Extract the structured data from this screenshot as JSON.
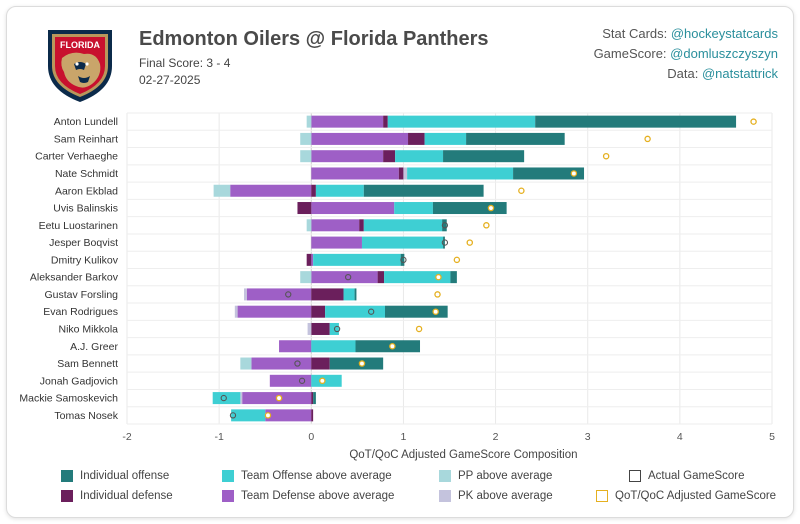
{
  "header": {
    "title": "Edmonton Oilers @ Florida Panthers",
    "final_score": "Final Score: 3 - 4",
    "date": "02-27-2025",
    "logo_text": "FLORIDA"
  },
  "credits": [
    {
      "label": "Stat Cards: ",
      "handle": "@hockeystatcards"
    },
    {
      "label": "GameScore: ",
      "handle": "@domluszczyszyn"
    },
    {
      "label": "Data: ",
      "handle": "@natstattrick"
    }
  ],
  "colors": {
    "ind_off": "#237b7b",
    "team_off": "#3ecfd3",
    "pp": "#a8d8dc",
    "ind_def": "#6b1f5c",
    "team_def": "#9e5fc6",
    "pk": "#c4c3dd",
    "qot_marker": "#e5b020"
  },
  "chart_data": {
    "type": "bar",
    "orientation": "horizontal-stacked",
    "xlabel": "QoT/QoC Adjusted GameScore Composition",
    "xlim": [
      -2,
      5
    ],
    "xticks": [
      -2,
      -1,
      0,
      1,
      2,
      3,
      4,
      5
    ],
    "players": [
      "Anton Lundell",
      "Sam Reinhart",
      "Carter Verhaeghe",
      "Nate Schmidt",
      "Aaron Ekblad",
      "Uvis Balinskis",
      "Eetu Luostarinen",
      "Jesper Boqvist",
      "Dmitry Kulikov",
      "Aleksander Barkov",
      "Gustav Forsling",
      "Evan Rodrigues",
      "Niko Mikkola",
      "A.J. Greer",
      "Sam Bennett",
      "Jonah Gadjovich",
      "Mackie Samoskevich",
      "Tomas Nosek"
    ],
    "series": [
      {
        "key": "team_def",
        "name": "Team Defense above average",
        "values": [
          0.78,
          1.05,
          0.78,
          0.95,
          -0.88,
          0.9,
          0.52,
          0.55,
          0.02,
          0.72,
          -0.7,
          -0.8,
          0.0,
          -0.35,
          -0.65,
          -0.45,
          -0.75,
          -0.5
        ]
      },
      {
        "key": "ind_def",
        "name": "Individual defense",
        "values": [
          0.05,
          0.18,
          0.13,
          0.05,
          0.05,
          -0.15,
          0.05,
          0.0,
          -0.05,
          0.07,
          0.35,
          0.15,
          0.2,
          0.0,
          0.2,
          0.0,
          0.02,
          0.02
        ]
      },
      {
        "key": "pk",
        "name": "PK above average",
        "values": [
          0.0,
          0.0,
          0.0,
          0.04,
          0.0,
          0.0,
          0.0,
          0.0,
          0.0,
          0.0,
          -0.03,
          -0.03,
          -0.04,
          0.0,
          0.0,
          0.0,
          -0.02,
          0.0
        ]
      },
      {
        "key": "pp",
        "name": "PP above average",
        "values": [
          -0.05,
          -0.12,
          -0.12,
          0.0,
          -0.18,
          0.0,
          -0.05,
          0.0,
          0.0,
          -0.12,
          0.0,
          0.0,
          0.0,
          0.0,
          -0.12,
          0.0,
          0.0,
          0.0
        ]
      },
      {
        "key": "team_off",
        "name": "Team Offense above average",
        "values": [
          1.6,
          0.45,
          0.52,
          1.15,
          0.52,
          0.42,
          0.85,
          0.88,
          0.95,
          0.72,
          0.12,
          0.65,
          0.1,
          0.48,
          0.0,
          0.33,
          -0.3,
          -0.37
        ]
      },
      {
        "key": "ind_off",
        "name": "Individual offense",
        "values": [
          2.18,
          1.07,
          0.88,
          0.77,
          1.3,
          0.8,
          0.05,
          0.02,
          0.04,
          0.07,
          0.02,
          0.68,
          0.0,
          0.7,
          0.58,
          0.0,
          0.03,
          0.0
        ]
      }
    ],
    "actual_gamescore": [
      null,
      null,
      null,
      null,
      null,
      null,
      1.45,
      1.45,
      1.0,
      0.4,
      -0.25,
      0.65,
      0.28,
      null,
      -0.15,
      -0.1,
      -0.95,
      -0.85
    ],
    "qot_adjusted_gamescore": [
      4.8,
      3.65,
      3.2,
      2.85,
      2.28,
      1.95,
      1.9,
      1.72,
      1.58,
      1.38,
      1.37,
      1.35,
      1.17,
      0.88,
      0.55,
      0.12,
      -0.35,
      -0.47
    ],
    "legend": {
      "ind_off": "Individual offense",
      "team_off": "Team Offense above average",
      "pp": "PP above average",
      "actual": "Actual GameScore",
      "ind_def": "Individual defense",
      "team_def": "Team Defense above average",
      "pk": "PK above average",
      "qot": "QoT/QoC Adjusted GameScore"
    },
    "grid": true
  }
}
